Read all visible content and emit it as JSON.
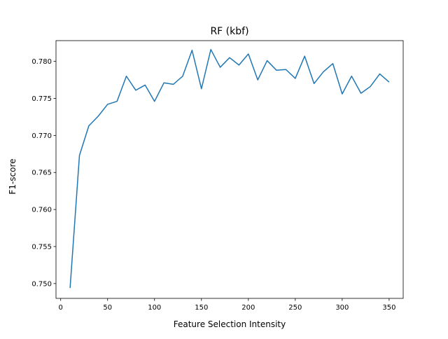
{
  "chart_data": {
    "type": "line",
    "title": "RF (kbf)",
    "xlabel": "Feature Selection Intensity",
    "ylabel": "F1-score",
    "xlim": [
      -5,
      365
    ],
    "ylim": [
      0.748,
      0.7828
    ],
    "xticks": [
      0,
      50,
      100,
      150,
      200,
      250,
      300,
      350
    ],
    "yticks": [
      0.75,
      0.755,
      0.76,
      0.765,
      0.77,
      0.775,
      0.78
    ],
    "ytick_labels": [
      "0.750",
      "0.755",
      "0.760",
      "0.765",
      "0.770",
      "0.775",
      "0.780"
    ],
    "grid": false,
    "color": "#1f77b4",
    "series": [
      {
        "x": [
          10,
          20,
          30,
          40,
          50,
          60,
          70,
          80,
          90,
          100,
          110,
          120,
          130,
          140,
          150,
          160,
          170,
          180,
          190,
          200,
          210,
          220,
          230,
          240,
          250,
          260,
          270,
          280,
          290,
          300,
          310,
          320,
          330,
          340,
          350
        ],
        "values": [
          0.7494,
          0.7673,
          0.7713,
          0.7726,
          0.7742,
          0.7746,
          0.778,
          0.7761,
          0.7768,
          0.7746,
          0.7771,
          0.7769,
          0.778,
          0.7815,
          0.7763,
          0.7816,
          0.7792,
          0.7805,
          0.7795,
          0.781,
          0.7775,
          0.7801,
          0.7788,
          0.7789,
          0.7777,
          0.7807,
          0.777,
          0.7786,
          0.7797,
          0.7756,
          0.778,
          0.7757,
          0.7766,
          0.7783,
          0.7772
        ]
      }
    ]
  }
}
